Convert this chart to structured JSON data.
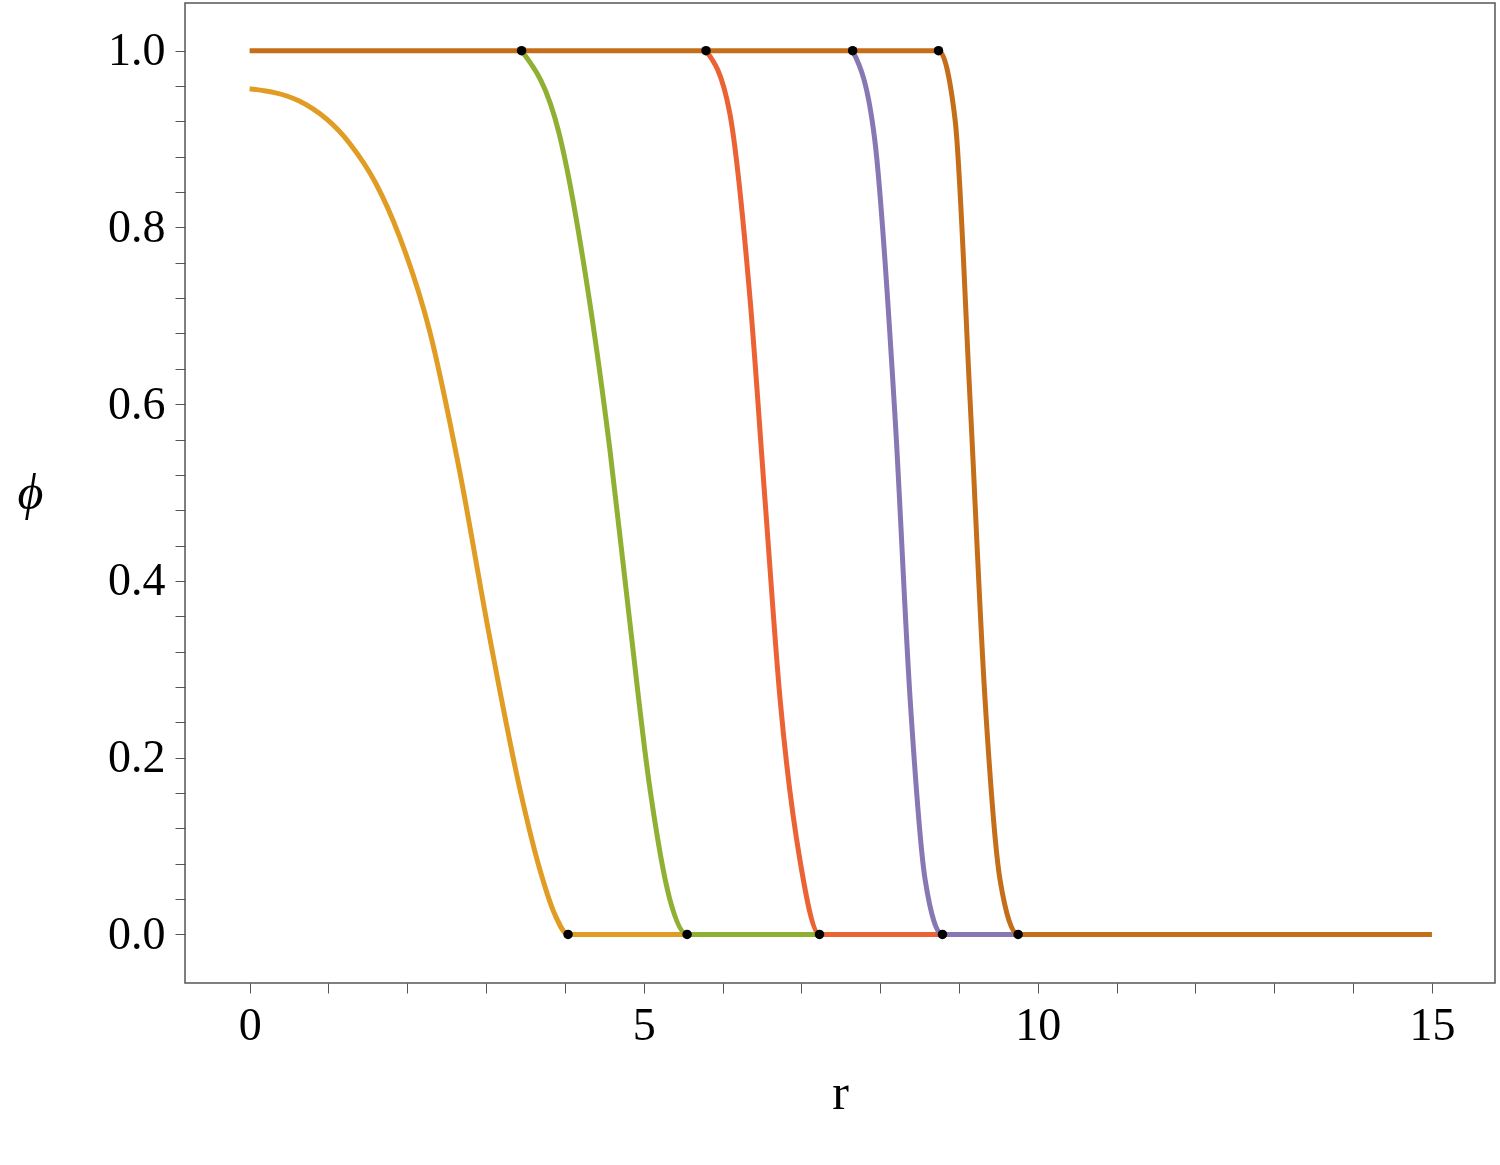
{
  "chart_data": {
    "type": "line",
    "xlabel": "r",
    "ylabel": "ϕ",
    "xlim": [
      -0.82,
      15.8
    ],
    "ylim": [
      -0.055,
      1.054
    ],
    "xticks": [
      0,
      {
        "value": 1,
        "label": null
      },
      {
        "value": 2,
        "label": null
      },
      {
        "value": 3,
        "label": null
      },
      {
        "value": 4,
        "label": null
      },
      5,
      {
        "value": 6,
        "label": null
      },
      {
        "value": 7,
        "label": null
      },
      {
        "value": 8,
        "label": null
      },
      {
        "value": 9,
        "label": null
      },
      10,
      {
        "value": 11,
        "label": null
      },
      {
        "value": 12,
        "label": null
      },
      {
        "value": 13,
        "label": null
      },
      {
        "value": 14,
        "label": null
      },
      15
    ],
    "yticks": [
      {
        "value": 0,
        "label": "0.0"
      },
      {
        "value": 0.04,
        "label": null
      },
      {
        "value": 0.08,
        "label": null
      },
      {
        "value": 0.12,
        "label": null
      },
      {
        "value": 0.16,
        "label": null
      },
      {
        "value": 0.2,
        "label": "0.2"
      },
      {
        "value": 0.24,
        "label": null
      },
      {
        "value": 0.28,
        "label": null
      },
      {
        "value": 0.32,
        "label": null
      },
      {
        "value": 0.36,
        "label": null
      },
      {
        "value": 0.4,
        "label": "0.4"
      },
      {
        "value": 0.44,
        "label": null
      },
      {
        "value": 0.48,
        "label": null
      },
      {
        "value": 0.52,
        "label": null
      },
      {
        "value": 0.56,
        "label": null
      },
      {
        "value": 0.6,
        "label": "0.6"
      },
      {
        "value": 0.64,
        "label": null
      },
      {
        "value": 0.68,
        "label": null
      },
      {
        "value": 0.72,
        "label": null
      },
      {
        "value": 0.76,
        "label": null
      },
      {
        "value": 0.8,
        "label": "0.8"
      },
      {
        "value": 0.84,
        "label": null
      },
      {
        "value": 0.88,
        "label": null
      },
      {
        "value": 0.92,
        "label": null
      },
      {
        "value": 0.96,
        "label": null
      },
      {
        "value": 1,
        "label": "1.0"
      }
    ],
    "grid": false,
    "marker": "none",
    "line_style": "solid",
    "series": [
      {
        "color": "#e19c24",
        "x": [
          0,
          0.63,
          1.27,
          1.6,
          1.9,
          2.28,
          2.66,
          3.05,
          3.43,
          3.68,
          3.87,
          4.04,
          5.55
        ],
        "values": [
          0.957,
          0.943,
          0.895,
          0.85,
          0.79,
          0.684,
          0.526,
          0.334,
          0.164,
          0.074,
          0.023,
          0,
          0
        ]
      },
      {
        "color": "#8fb032",
        "x": [
          3.45,
          3.93,
          4.31,
          4.57,
          4.82,
          5.08,
          5.33,
          5.55,
          7.23
        ],
        "values": [
          1,
          0.905,
          0.718,
          0.549,
          0.356,
          0.164,
          0.04,
          0,
          0
        ]
      },
      {
        "color": "#eb6235",
        "x": [
          5.79,
          6.09,
          6.35,
          6.54,
          6.73,
          6.98,
          7.23,
          8.79
        ],
        "values": [
          1,
          0.93,
          0.718,
          0.49,
          0.266,
          0.085,
          0,
          0
        ]
      },
      {
        "color": "#8778b3",
        "x": [
          7.65,
          7.93,
          8.19,
          8.38,
          8.57,
          8.79,
          9.75
        ],
        "values": [
          1,
          0.9,
          0.583,
          0.266,
          0.062,
          0,
          0
        ]
      },
      {
        "color": "#c56e1a",
        "x": [
          0,
          8.74,
          8.95,
          9.14,
          9.33,
          9.52,
          9.75,
          15
        ],
        "values": [
          1,
          1,
          0.922,
          0.605,
          0.266,
          0.062,
          0,
          0
        ]
      },
      {
        "type": "scatter",
        "color": "#000000",
        "marker": "circle",
        "x": [
          4.04,
          3.45,
          5.55,
          5.79,
          7.23,
          7.65,
          8.79,
          8.74,
          9.75
        ],
        "values": [
          0,
          1,
          0,
          1,
          0,
          1,
          0,
          1,
          0
        ]
      }
    ]
  }
}
